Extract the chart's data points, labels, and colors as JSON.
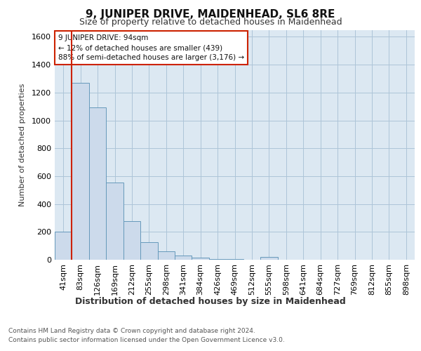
{
  "title": "9, JUNIPER DRIVE, MAIDENHEAD, SL6 8RE",
  "subtitle": "Size of property relative to detached houses in Maidenhead",
  "xlabel": "Distribution of detached houses by size in Maidenhead",
  "ylabel": "Number of detached properties",
  "categories": [
    "41sqm",
    "83sqm",
    "126sqm",
    "169sqm",
    "212sqm",
    "255sqm",
    "298sqm",
    "341sqm",
    "384sqm",
    "426sqm",
    "469sqm",
    "512sqm",
    "555sqm",
    "598sqm",
    "641sqm",
    "684sqm",
    "727sqm",
    "769sqm",
    "812sqm",
    "855sqm",
    "898sqm"
  ],
  "values": [
    200,
    1270,
    1095,
    555,
    275,
    125,
    60,
    30,
    15,
    5,
    5,
    0,
    20,
    0,
    0,
    0,
    0,
    0,
    0,
    0,
    0
  ],
  "bar_color": "#ccdaeb",
  "bar_edge_color": "#6699bb",
  "vline_x_index": 1,
  "vline_color": "#cc2200",
  "annotation_text": "9 JUNIPER DRIVE: 94sqm\n← 12% of detached houses are smaller (439)\n88% of semi-detached houses are larger (3,176) →",
  "annotation_box_facecolor": "#ffffff",
  "annotation_box_edgecolor": "#cc2200",
  "ylim": [
    0,
    1650
  ],
  "yticks": [
    0,
    200,
    400,
    600,
    800,
    1000,
    1200,
    1400,
    1600
  ],
  "grid_color": "#adc4d8",
  "background_color": "#dce8f2",
  "title_fontsize": 11,
  "subtitle_fontsize": 9,
  "ylabel_fontsize": 8,
  "xlabel_fontsize": 9,
  "tick_fontsize": 8,
  "footer_line1": "Contains HM Land Registry data © Crown copyright and database right 2024.",
  "footer_line2": "Contains public sector information licensed under the Open Government Licence v3.0."
}
